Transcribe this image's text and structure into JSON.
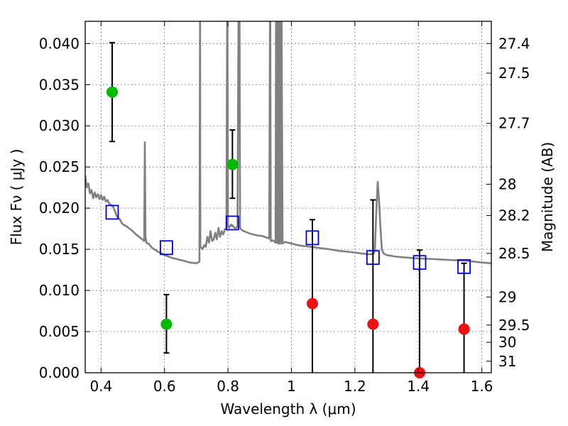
{
  "chart_data": {
    "type": "scatter",
    "title": "",
    "xlabel": "Wavelength  λ (μm)",
    "ylabel": "Flux  Fν  ( μJy )",
    "ylabel_right": "Magnitude (AB)",
    "xlim": [
      0.35,
      1.63
    ],
    "ylim": [
      0.0,
      0.0427
    ],
    "grid": true,
    "xticks": [
      0.4,
      0.6,
      0.8,
      1.0,
      1.2,
      1.4,
      1.6
    ],
    "xtick_labels": [
      "0.4",
      "0.6",
      "0.8",
      "1",
      "1.2",
      "1.4",
      "1.6"
    ],
    "yticks": [
      0.0,
      0.005,
      0.01,
      0.015,
      0.02,
      0.025,
      0.03,
      0.035,
      0.04
    ],
    "ytick_labels": [
      "0.000",
      "0.005",
      "0.010",
      "0.015",
      "0.020",
      "0.025",
      "0.030",
      "0.035",
      "0.040"
    ],
    "right_ticks": [
      {
        "label": "27.4",
        "flux": 0.04
      },
      {
        "label": "27.5",
        "flux": 0.0364
      },
      {
        "label": "27.7",
        "flux": 0.0303
      },
      {
        "label": "28",
        "flux": 0.0229
      },
      {
        "label": "28.2",
        "flux": 0.0191
      },
      {
        "label": "28.5",
        "flux": 0.0145
      },
      {
        "label": "29",
        "flux": 0.0092
      },
      {
        "label": "29.5",
        "flux": 0.0058
      },
      {
        "label": "30",
        "flux": 0.0037
      },
      {
        "label": "31",
        "flux": 0.0014
      }
    ],
    "series": [
      {
        "marker": "circle",
        "color": "#00bb00",
        "points": [
          {
            "x": 0.435,
            "y": 0.0341,
            "err_lo": 0.0281,
            "err_hi": 0.0401
          },
          {
            "x": 0.606,
            "y": 0.0059,
            "err_lo": 0.0024,
            "err_hi": 0.0095
          },
          {
            "x": 0.814,
            "y": 0.0253,
            "err_lo": 0.0212,
            "err_hi": 0.0295
          }
        ]
      },
      {
        "marker": "circle",
        "color": "#ee1111",
        "points": [
          {
            "x": 1.066,
            "y": 0.0084,
            "err_lo": 0.0,
            "err_hi": 0.0186
          },
          {
            "x": 1.257,
            "y": 0.0059,
            "err_lo": 0.0,
            "err_hi": 0.021
          },
          {
            "x": 1.404,
            "y": 0.0,
            "err_lo": 0.0,
            "err_hi": 0.0149
          },
          {
            "x": 1.544,
            "y": 0.0053,
            "err_lo": 0.0,
            "err_hi": 0.0133
          }
        ]
      },
      {
        "marker": "square",
        "color": "#0000cc",
        "points": [
          {
            "x": 0.435,
            "y": 0.0195
          },
          {
            "x": 0.606,
            "y": 0.0152
          },
          {
            "x": 0.814,
            "y": 0.0182
          },
          {
            "x": 1.066,
            "y": 0.0164
          },
          {
            "x": 1.257,
            "y": 0.014
          },
          {
            "x": 1.404,
            "y": 0.0134
          },
          {
            "x": 1.544,
            "y": 0.0129
          }
        ]
      },
      {
        "type": "line",
        "color": "#808080",
        "x": [
          0.35,
          0.355,
          0.36,
          0.365,
          0.37,
          0.375,
          0.38,
          0.385,
          0.39,
          0.395,
          0.4,
          0.405,
          0.41,
          0.415,
          0.42,
          0.425,
          0.43,
          0.435,
          0.44,
          0.445,
          0.45,
          0.455,
          0.46,
          0.465,
          0.47,
          0.48,
          0.49,
          0.5,
          0.51,
          0.52,
          0.53,
          0.536,
          0.538,
          0.54,
          0.543,
          0.546,
          0.55,
          0.56,
          0.58,
          0.6,
          0.62,
          0.64,
          0.66,
          0.68,
          0.7,
          0.71,
          0.712,
          0.713,
          0.716,
          0.72,
          0.725,
          0.73,
          0.735,
          0.74,
          0.745,
          0.75,
          0.755,
          0.76,
          0.765,
          0.77,
          0.775,
          0.78,
          0.785,
          0.79,
          0.795,
          0.798,
          0.8,
          0.803,
          0.806,
          0.81,
          0.813,
          0.815,
          0.818,
          0.822,
          0.826,
          0.83,
          0.834,
          0.836,
          0.838,
          0.842,
          0.85,
          0.87,
          0.89,
          0.91,
          0.93,
          0.933,
          0.935,
          0.937,
          0.94,
          0.945,
          0.95,
          0.952,
          0.954,
          0.956,
          0.958,
          0.96,
          0.962,
          0.964,
          0.966,
          0.968,
          0.972,
          0.98,
          1.0,
          1.02,
          1.04,
          1.06,
          1.08,
          1.1,
          1.12,
          1.15,
          1.18,
          1.2,
          1.22,
          1.24,
          1.25,
          1.26,
          1.263,
          1.268,
          1.272,
          1.276,
          1.28,
          1.285,
          1.29,
          1.3,
          1.33,
          1.36,
          1.4,
          1.45,
          1.5,
          1.55,
          1.6,
          1.63
        ],
        "y": [
          0.024,
          0.0225,
          0.023,
          0.0218,
          0.0222,
          0.0212,
          0.0219,
          0.0213,
          0.0217,
          0.0211,
          0.0216,
          0.021,
          0.0214,
          0.0208,
          0.021,
          0.0206,
          0.0204,
          0.0203,
          0.02,
          0.0195,
          0.019,
          0.0188,
          0.0186,
          0.0182,
          0.018,
          0.0178,
          0.0175,
          0.0172,
          0.0168,
          0.0165,
          0.0162,
          0.016,
          0.028,
          0.0165,
          0.0158,
          0.0157,
          0.0157,
          0.0152,
          0.0147,
          0.0143,
          0.014,
          0.0138,
          0.0136,
          0.0134,
          0.0133,
          0.0135,
          0.0455,
          0.0153,
          0.0152,
          0.015,
          0.0155,
          0.0153,
          0.0165,
          0.0158,
          0.0172,
          0.016,
          0.0162,
          0.017,
          0.0162,
          0.0176,
          0.0165,
          0.0172,
          0.0168,
          0.0174,
          0.0176,
          0.05,
          0.018,
          0.0176,
          0.0178,
          0.018,
          0.0178,
          0.0179,
          0.0177,
          0.0176,
          0.0176,
          0.0178,
          0.05,
          0.05,
          0.0176,
          0.0174,
          0.0172,
          0.0169,
          0.0167,
          0.0166,
          0.0163,
          0.05,
          0.016,
          0.016,
          0.0161,
          0.016,
          0.0158,
          0.05,
          0.0158,
          0.05,
          0.0157,
          0.05,
          0.0157,
          0.05,
          0.0157,
          0.05,
          0.0157,
          0.0159,
          0.0157,
          0.0155,
          0.0154,
          0.0153,
          0.0152,
          0.0151,
          0.015,
          0.0148,
          0.0147,
          0.0146,
          0.0145,
          0.0144,
          0.0144,
          0.0145,
          0.015,
          0.02,
          0.0232,
          0.021,
          0.018,
          0.015,
          0.0145,
          0.0143,
          0.0141,
          0.014,
          0.0139,
          0.0138,
          0.0137,
          0.0136,
          0.0134,
          0.0133
        ]
      }
    ]
  }
}
